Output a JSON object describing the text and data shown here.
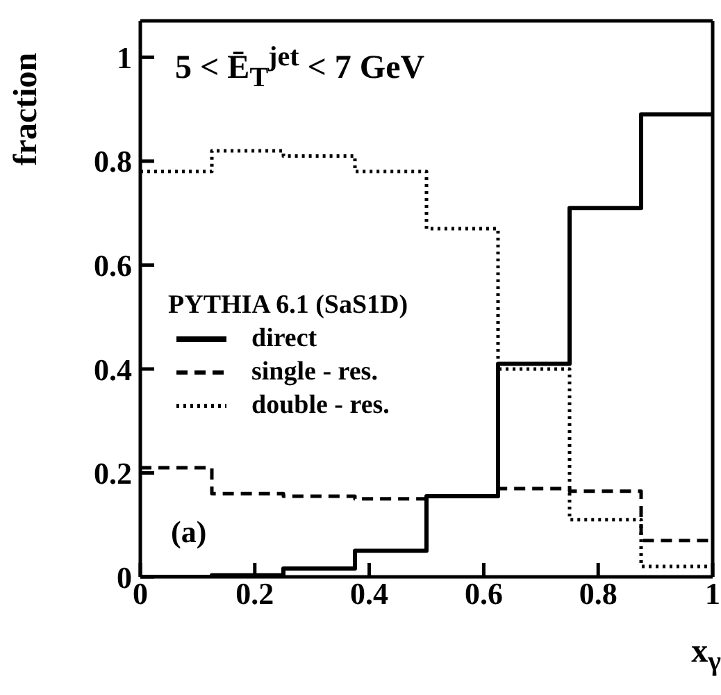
{
  "chart_data": {
    "type": "histogram",
    "xlabel": "x$_{γ}$",
    "ylabel": "fraction",
    "legend_title": "PYTHIA 6.1 (SaS1D)",
    "annotations": [
      "5 < Ē$_{T}$$^{jet}$ < 7 GeV",
      "(a)"
    ],
    "bins": [
      0,
      0.125,
      0.25,
      0.375,
      0.5,
      0.625,
      0.75,
      0.875,
      1
    ],
    "series": [
      {
        "name": "direct",
        "color": "#000000",
        "line_style": "solid",
        "values": [
          0,
          0.003,
          0.016,
          0.05,
          0.155,
          0.41,
          0.71,
          0.89
        ]
      },
      {
        "name": "single - res.",
        "color": "#000000",
        "line_style": "dashed",
        "values": [
          0.21,
          0.16,
          0.155,
          0.15,
          0.155,
          0.17,
          0.165,
          0.07
        ]
      },
      {
        "name": "double - res.",
        "color": "#000000",
        "line_style": "dotted",
        "values": [
          0.78,
          0.82,
          0.81,
          0.78,
          0.67,
          0.4,
          0.11,
          0.02
        ]
      }
    ],
    "xlim": [
      0,
      1
    ],
    "xticks": [
      0,
      0.2,
      0.4,
      0.6,
      0.8,
      1
    ],
    "ylim": [
      0,
      1.07
    ],
    "yticks": [
      0,
      0.2,
      0.4,
      0.6,
      0.8,
      1
    ],
    "legend": "left",
    "grid": false
  }
}
